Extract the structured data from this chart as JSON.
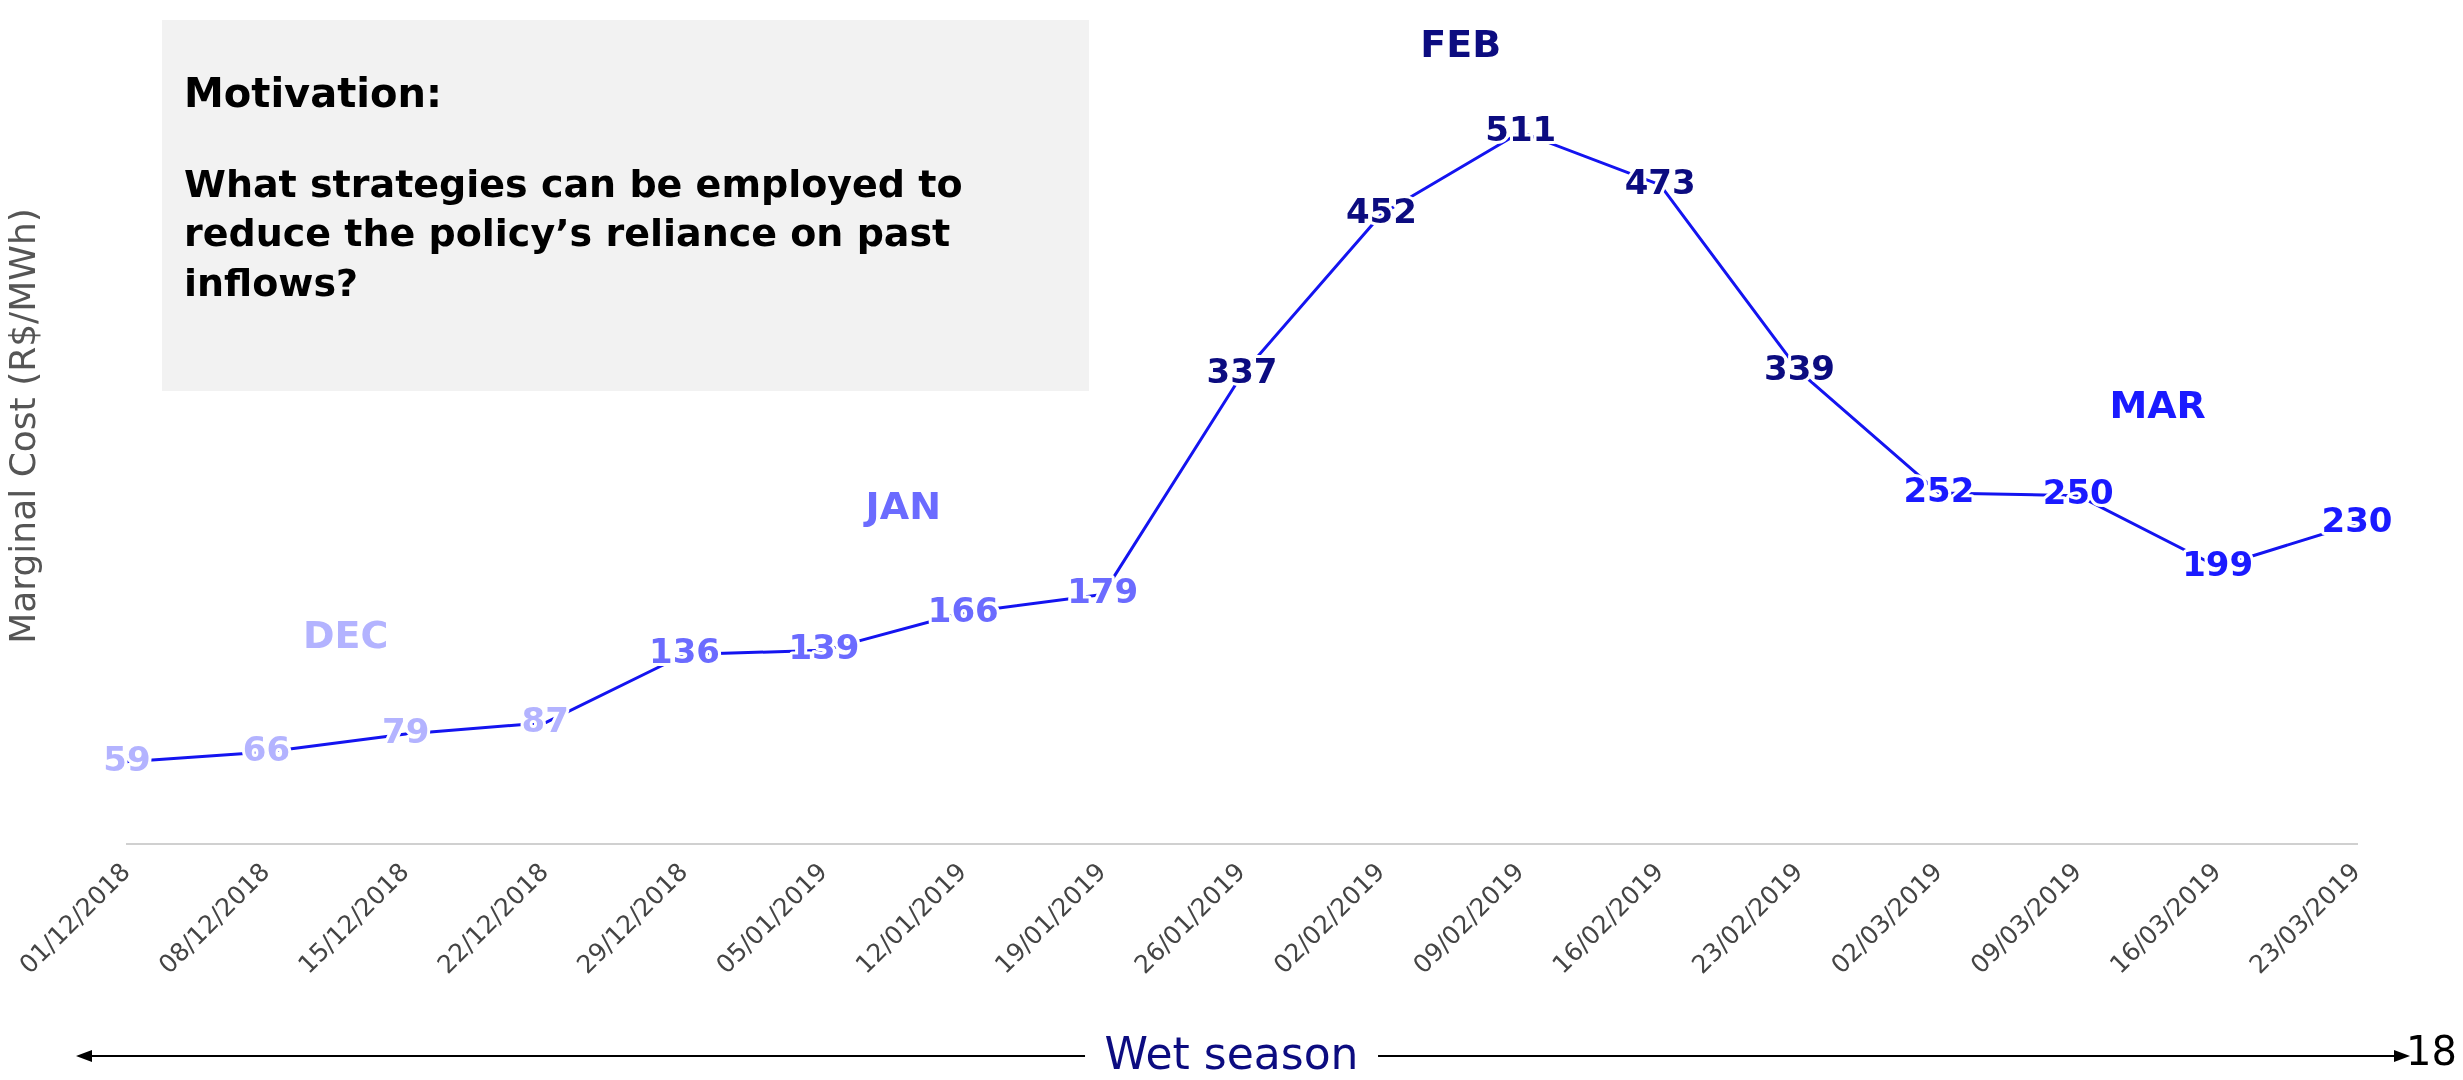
{
  "chart_data": {
    "type": "line",
    "title": "Motivation:",
    "subtitle": "What strategies can be employed to reduce the policy’s reliance on past inflows?",
    "xlabel": "Wet season",
    "ylabel": "Marginal Cost (R$/MWh)",
    "categories": [
      "01/12/2018",
      "08/12/2018",
      "15/12/2018",
      "22/12/2018",
      "29/12/2018",
      "05/01/2019",
      "12/01/2019",
      "19/01/2019",
      "26/01/2019",
      "02/02/2019",
      "09/02/2019",
      "16/02/2019",
      "23/02/2019",
      "02/03/2019",
      "09/03/2019",
      "16/03/2019",
      "23/03/2019"
    ],
    "series": [
      {
        "color": "#1414f0",
        "values": [
          59,
          66,
          79,
          87,
          136,
          139,
          166,
          179,
          337,
          452,
          511,
          473,
          339,
          252,
          250,
          199,
          230
        ]
      }
    ],
    "colors": [
      "#b3b3ff",
      "#b3b3ff",
      "#b3b3ff",
      "#b3b3ff",
      "#6b6bff",
      "#6b6bff",
      "#6b6bff",
      "#6b6bff",
      "#0c0c80",
      "#0c0c80",
      "#0c0c80",
      "#0c0c80",
      "#0c0c80",
      "#1a1aff",
      "#1a1aff",
      "#1a1aff",
      "#1a1aff"
    ],
    "data_labels": true,
    "marker": "none",
    "line_style": "solid",
    "grid": false,
    "legend": false,
    "annotations": [
      "DEC",
      "JAN",
      "FEB",
      "MAR",
      "18"
    ]
  }
}
